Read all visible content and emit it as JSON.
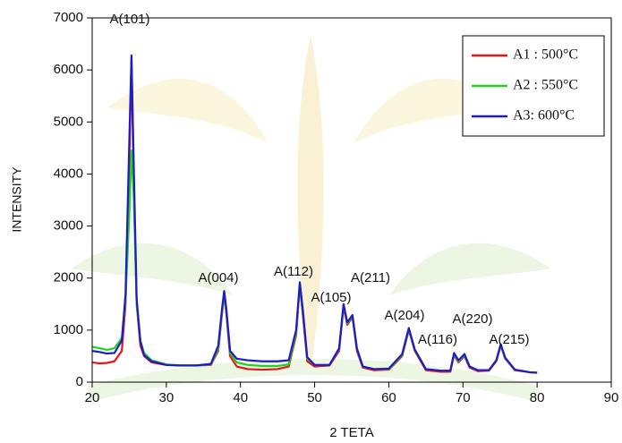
{
  "chart_data": {
    "type": "line",
    "xlabel": "2 TETA",
    "ylabel": "INTENSITY",
    "xlim": [
      20,
      90
    ],
    "xticks": [
      20,
      30,
      40,
      50,
      60,
      70,
      80,
      90
    ],
    "ylim": [
      0,
      7000
    ],
    "yticks": [
      0,
      1000,
      2000,
      3000,
      4000,
      5000,
      6000,
      7000
    ],
    "legend": "upper right",
    "annotations": [
      "A(101)",
      "A(004)",
      "A(112)",
      "A(105)",
      "A(211)",
      "A(204)",
      "A(116)",
      "A(220)",
      "A(215)"
    ],
    "x": [
      20,
      21,
      22,
      23,
      24,
      24.5,
      25,
      25.3,
      25.6,
      26,
      26.5,
      27,
      28,
      30,
      32,
      34,
      36,
      37,
      37.5,
      37.8,
      38.1,
      38.6,
      39.5,
      41,
      43,
      45,
      46.5,
      47.5,
      48,
      48.4,
      49,
      50,
      52,
      53.3,
      53.9,
      54.4,
      55.1,
      55.7,
      56.5,
      58,
      60,
      61.8,
      62.7,
      63.5,
      65,
      67,
      68.3,
      68.8,
      69.4,
      70.2,
      70.9,
      72,
      73.5,
      74.5,
      75.1,
      75.7,
      77,
      79,
      80
    ],
    "series": [
      {
        "name": "A1 : 500°C",
        "color": "#e8141a",
        "values": [
          380,
          360,
          370,
          400,
          600,
          1500,
          4200,
          6200,
          3800,
          1500,
          700,
          500,
          380,
          330,
          320,
          320,
          330,
          600,
          1300,
          1700,
          1300,
          500,
          300,
          250,
          240,
          250,
          300,
          900,
          1850,
          1300,
          400,
          300,
          320,
          600,
          1450,
          1100,
          1250,
          600,
          280,
          230,
          240,
          500,
          1000,
          600,
          230,
          200,
          200,
          520,
          380,
          500,
          280,
          210,
          220,
          400,
          700,
          450,
          230,
          190,
          180
        ]
      },
      {
        "name": "A2 : 550°C",
        "color": "#1fd21f",
        "values": [
          680,
          650,
          620,
          650,
          850,
          1600,
          3200,
          4450,
          3600,
          1500,
          800,
          560,
          420,
          340,
          320,
          320,
          340,
          640,
          1350,
          1720,
          1350,
          560,
          380,
          330,
          310,
          310,
          340,
          950,
          1880,
          1350,
          450,
          330,
          330,
          640,
          1480,
          1130,
          1270,
          640,
          300,
          250,
          250,
          520,
          1020,
          620,
          250,
          220,
          220,
          540,
          400,
          520,
          300,
          230,
          230,
          420,
          710,
          460,
          240,
          190,
          180
        ]
      },
      {
        "name": "A3:  600°C",
        "color": "#1c1cc8",
        "values": [
          600,
          580,
          550,
          560,
          800,
          1700,
          4600,
          6280,
          4200,
          1600,
          780,
          520,
          400,
          330,
          320,
          320,
          350,
          700,
          1400,
          1750,
          1400,
          600,
          450,
          420,
          400,
          400,
          420,
          1000,
          1920,
          1400,
          480,
          330,
          330,
          650,
          1500,
          1150,
          1290,
          650,
          300,
          250,
          260,
          540,
          1040,
          630,
          250,
          220,
          220,
          560,
          420,
          540,
          300,
          230,
          230,
          420,
          730,
          470,
          240,
          190,
          180
        ]
      }
    ]
  }
}
